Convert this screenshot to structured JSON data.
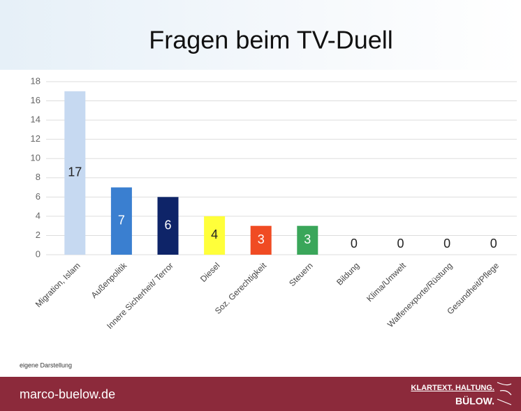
{
  "chart_data": {
    "type": "bar",
    "title": "Fragen beim TV-Duell",
    "categories": [
      "Migration, Islam",
      "Außenpolitik",
      "Innere Sicherheit/ Terror",
      "Diesel",
      "Soz. Gerechtigkeit",
      "Steuern",
      "Bildung",
      "Klima/Umwelt",
      "Waffenexporte/Rüstung",
      "Gesundheit/Pflege"
    ],
    "values": [
      17,
      7,
      6,
      4,
      3,
      3,
      0,
      0,
      0,
      0
    ],
    "colors": [
      "#c6d9f1",
      "#3a7fd0",
      "#0e2468",
      "#ffff3a",
      "#f04b23",
      "#3aa65a",
      null,
      null,
      null,
      null
    ],
    "ylim": [
      0,
      18
    ],
    "yticks": [
      0,
      2,
      4,
      6,
      8,
      10,
      12,
      14,
      16,
      18
    ],
    "grid": true
  },
  "note": "eigene Darstellung",
  "footer": {
    "site": "marco-buelow.de",
    "slogan": "KLARTEXT. HALTUNG.",
    "name": "BÜLOW."
  }
}
